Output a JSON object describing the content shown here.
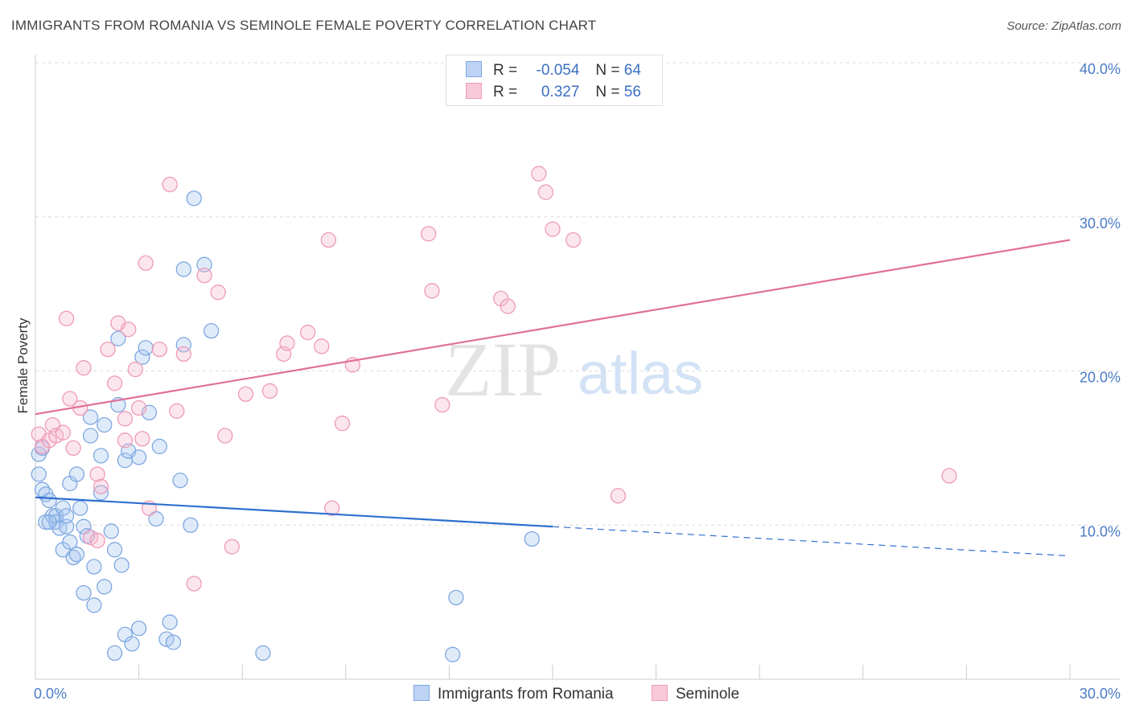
{
  "title": "IMMIGRANTS FROM ROMANIA VS SEMINOLE FEMALE POVERTY CORRELATION CHART",
  "source": "Source: ZipAtlas.com",
  "watermark": {
    "zip": "ZIP",
    "atlas": "atlas"
  },
  "legend": {
    "rows": [
      {
        "r_label": "R =",
        "r_value": "-0.054",
        "n_label": "N =",
        "n_value": "64"
      },
      {
        "r_label": "R =",
        "r_value": "0.327",
        "n_label": "N =",
        "n_value": "56"
      }
    ]
  },
  "bottom_legend": {
    "series1": "Immigrants from Romania",
    "series2": "Seminole"
  },
  "colors": {
    "blue": "#8fb5ea",
    "blue_line": "#2f6fcf",
    "pink": "#f2a6c0",
    "pink_line": "#e07098"
  },
  "chart_data": {
    "type": "scatter",
    "title": "IMMIGRANTS FROM ROMANIA VS SEMINOLE FEMALE POVERTY CORRELATION CHART",
    "xlabel": "",
    "ylabel": "Female Poverty",
    "xlim": [
      0,
      30
    ],
    "ylim": [
      0,
      40
    ],
    "x_tick_labels": [
      "0.0%",
      "30.0%"
    ],
    "y_ticks": [
      10,
      20,
      30,
      40
    ],
    "y_tick_labels": [
      "10.0%",
      "20.0%",
      "30.0%",
      "40.0%"
    ],
    "series": [
      {
        "name": "Immigrants from Romania",
        "trend": {
          "x0": 0,
          "y0": 11.8,
          "x1": 15,
          "y1": 9.9,
          "dash_to_x": 30,
          "dash_to_y": 8.0
        },
        "points": [
          [
            0.1,
            14.6
          ],
          [
            0.1,
            13.3
          ],
          [
            0.2,
            12.3
          ],
          [
            0.3,
            12.0
          ],
          [
            0.3,
            10.2
          ],
          [
            0.4,
            11.6
          ],
          [
            0.5,
            10.6
          ],
          [
            0.6,
            10.6
          ],
          [
            0.6,
            10.2
          ],
          [
            0.7,
            9.8
          ],
          [
            0.8,
            8.4
          ],
          [
            0.8,
            11.1
          ],
          [
            0.9,
            9.9
          ],
          [
            0.9,
            10.6
          ],
          [
            1.0,
            8.9
          ],
          [
            1.0,
            12.7
          ],
          [
            1.1,
            7.9
          ],
          [
            1.2,
            13.3
          ],
          [
            1.2,
            8.1
          ],
          [
            1.3,
            11.1
          ],
          [
            1.4,
            9.9
          ],
          [
            1.4,
            5.6
          ],
          [
            1.5,
            9.3
          ],
          [
            1.6,
            17.0
          ],
          [
            1.6,
            15.8
          ],
          [
            1.7,
            7.3
          ],
          [
            1.7,
            4.8
          ],
          [
            1.9,
            14.5
          ],
          [
            1.9,
            12.1
          ],
          [
            2.0,
            6.0
          ],
          [
            2.0,
            16.5
          ],
          [
            2.2,
            9.6
          ],
          [
            2.3,
            8.4
          ],
          [
            2.3,
            1.7
          ],
          [
            2.4,
            22.1
          ],
          [
            2.4,
            17.8
          ],
          [
            2.5,
            7.4
          ],
          [
            2.6,
            14.2
          ],
          [
            2.6,
            2.9
          ],
          [
            2.7,
            14.8
          ],
          [
            2.8,
            2.3
          ],
          [
            3.0,
            14.4
          ],
          [
            3.0,
            3.3
          ],
          [
            3.1,
            20.9
          ],
          [
            3.2,
            21.5
          ],
          [
            3.3,
            17.3
          ],
          [
            3.5,
            10.4
          ],
          [
            3.6,
            15.1
          ],
          [
            3.8,
            2.6
          ],
          [
            3.9,
            3.7
          ],
          [
            4.0,
            2.4
          ],
          [
            4.2,
            12.9
          ],
          [
            4.3,
            21.7
          ],
          [
            4.3,
            26.6
          ],
          [
            4.5,
            10.0
          ],
          [
            4.6,
            31.2
          ],
          [
            4.9,
            26.9
          ],
          [
            5.1,
            22.6
          ],
          [
            6.6,
            1.7
          ],
          [
            12.1,
            1.6
          ],
          [
            12.2,
            5.3
          ],
          [
            14.4,
            9.1
          ],
          [
            0.2,
            15.0
          ],
          [
            0.4,
            10.2
          ]
        ]
      },
      {
        "name": "Seminole",
        "trend": {
          "x0": 0,
          "y0": 17.2,
          "x1": 30,
          "y1": 28.5
        },
        "points": [
          [
            0.1,
            15.9
          ],
          [
            0.2,
            15.1
          ],
          [
            0.4,
            15.5
          ],
          [
            0.5,
            16.5
          ],
          [
            0.6,
            15.8
          ],
          [
            0.8,
            16.0
          ],
          [
            0.9,
            23.4
          ],
          [
            1.0,
            18.2
          ],
          [
            1.1,
            15.0
          ],
          [
            1.3,
            17.6
          ],
          [
            1.4,
            20.2
          ],
          [
            1.6,
            9.2
          ],
          [
            1.8,
            9.0
          ],
          [
            1.8,
            13.3
          ],
          [
            1.9,
            12.5
          ],
          [
            2.1,
            21.4
          ],
          [
            2.3,
            19.2
          ],
          [
            2.4,
            23.1
          ],
          [
            2.6,
            15.5
          ],
          [
            2.6,
            16.9
          ],
          [
            2.7,
            22.7
          ],
          [
            2.9,
            20.1
          ],
          [
            3.0,
            17.6
          ],
          [
            3.1,
            15.6
          ],
          [
            3.2,
            27.0
          ],
          [
            3.3,
            11.1
          ],
          [
            3.6,
            21.4
          ],
          [
            3.9,
            32.1
          ],
          [
            4.1,
            17.4
          ],
          [
            4.3,
            21.1
          ],
          [
            4.9,
            26.2
          ],
          [
            5.3,
            25.1
          ],
          [
            5.5,
            15.8
          ],
          [
            5.7,
            8.6
          ],
          [
            6.1,
            18.5
          ],
          [
            6.8,
            18.7
          ],
          [
            7.2,
            21.1
          ],
          [
            7.3,
            21.8
          ],
          [
            7.9,
            22.5
          ],
          [
            8.3,
            21.6
          ],
          [
            8.5,
            28.5
          ],
          [
            8.6,
            11.1
          ],
          [
            8.9,
            16.6
          ],
          [
            9.2,
            20.4
          ],
          [
            11.4,
            28.9
          ],
          [
            11.5,
            25.2
          ],
          [
            11.8,
            17.8
          ],
          [
            13.5,
            24.7
          ],
          [
            13.7,
            24.2
          ],
          [
            14.6,
            32.8
          ],
          [
            14.8,
            31.6
          ],
          [
            15.0,
            29.2
          ],
          [
            15.6,
            28.5
          ],
          [
            16.9,
            11.9
          ],
          [
            26.5,
            13.2
          ],
          [
            4.6,
            6.2
          ]
        ]
      }
    ]
  }
}
